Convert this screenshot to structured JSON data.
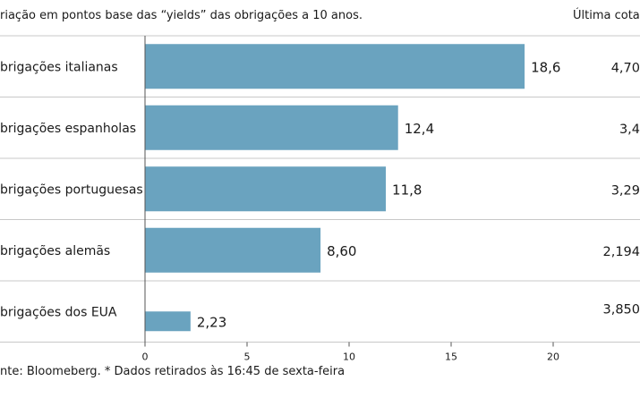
{
  "header": {
    "subtitle": "riação em pontos base das “yields” das obrigações a 10 anos.",
    "column_title": "Última cota"
  },
  "footer": {
    "source": "nte: Bloomeberg. * Dados retirados às 16:45 de sexta-feira"
  },
  "colors": {
    "bar": "#6aa3bf",
    "separator": "#c8c8c8",
    "axis": "#555555"
  },
  "chart_data": {
    "type": "bar",
    "orientation": "horizontal",
    "categories": [
      "brigações italianas",
      "brigações espanholas",
      "brigações portuguesas",
      "brigações alemãs",
      "brigações dos EUA"
    ],
    "values": [
      18.6,
      12.4,
      11.8,
      8.6,
      2.23
    ],
    "value_labels": [
      "18,6",
      "12,4",
      "11,8",
      "8,60",
      "2,23"
    ],
    "last_quote": [
      "4,70",
      "3,4",
      "3,29",
      "2,194",
      "3,850"
    ],
    "xlim": [
      0,
      20
    ],
    "ticks": [
      0,
      5,
      10,
      15,
      20
    ],
    "tick_labels": [
      "0",
      "5",
      "10",
      "15",
      "20"
    ],
    "grid": false
  }
}
